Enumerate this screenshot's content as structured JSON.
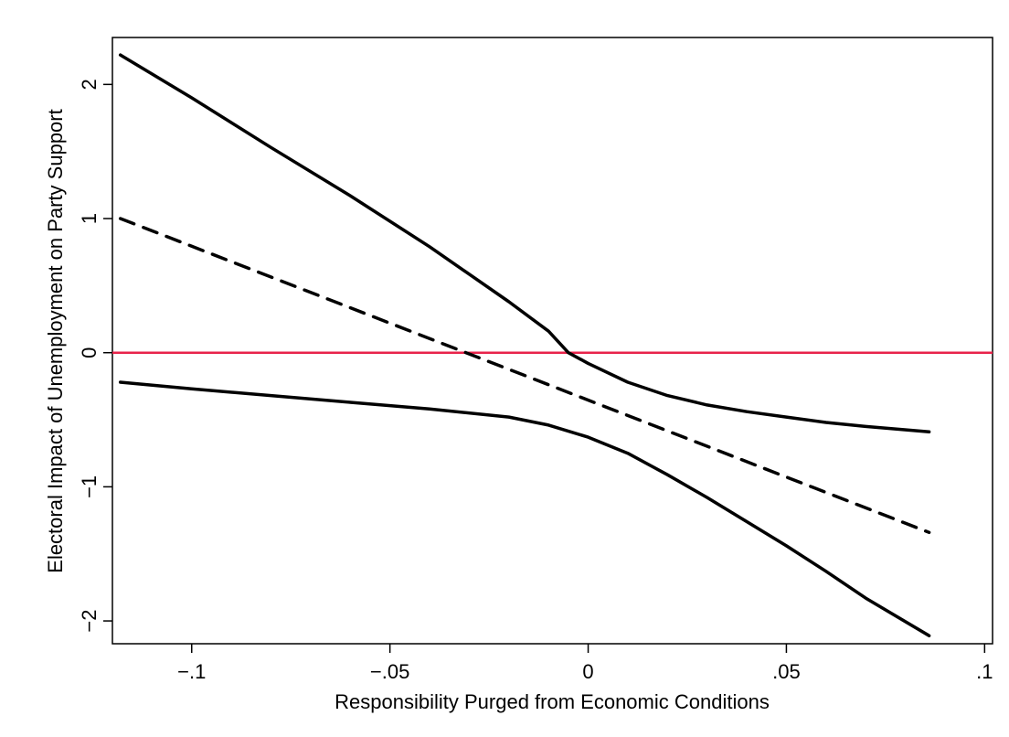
{
  "chart_data": {
    "type": "line",
    "title": "",
    "xlabel": "Responsibility Purged from Economic Conditions",
    "ylabel": "Electoral Impact of Unemployment on Party Support",
    "xlim": [
      -0.12,
      0.102
    ],
    "ylim": [
      -2.17,
      2.35
    ],
    "x_ticks": [
      -0.1,
      -0.05,
      0,
      0.05,
      0.1
    ],
    "x_tick_labels": [
      "−.1",
      "−.05",
      "0",
      ".05",
      ".1"
    ],
    "y_ticks": [
      -2,
      -1,
      0,
      1,
      2
    ],
    "y_tick_labels": [
      "−2",
      "−1",
      "0",
      "1",
      "2"
    ],
    "grid": false,
    "legend": "none",
    "reference_line": {
      "y": 0,
      "color": "#e8234a"
    },
    "series": [
      {
        "role": "upper-bound",
        "style": "solid",
        "color": "#000000",
        "points": [
          [
            -0.118,
            2.22
          ],
          [
            -0.1,
            1.9
          ],
          [
            -0.08,
            1.53
          ],
          [
            -0.06,
            1.17
          ],
          [
            -0.04,
            0.79
          ],
          [
            -0.02,
            0.38
          ],
          [
            -0.01,
            0.16
          ],
          [
            -0.005,
            0.0
          ],
          [
            0.0,
            -0.08
          ],
          [
            0.01,
            -0.22
          ],
          [
            0.02,
            -0.32
          ],
          [
            0.03,
            -0.39
          ],
          [
            0.04,
            -0.44
          ],
          [
            0.05,
            -0.48
          ],
          [
            0.06,
            -0.52
          ],
          [
            0.07,
            -0.55
          ],
          [
            0.086,
            -0.59
          ]
        ]
      },
      {
        "role": "point-estimate",
        "style": "dashed",
        "color": "#000000",
        "points": [
          [
            -0.118,
            1.0
          ],
          [
            0.086,
            -1.34
          ]
        ]
      },
      {
        "role": "lower-bound",
        "style": "solid",
        "color": "#000000",
        "points": [
          [
            -0.118,
            -0.22
          ],
          [
            -0.1,
            -0.27
          ],
          [
            -0.08,
            -0.32
          ],
          [
            -0.06,
            -0.37
          ],
          [
            -0.04,
            -0.42
          ],
          [
            -0.02,
            -0.48
          ],
          [
            -0.01,
            -0.54
          ],
          [
            0.0,
            -0.63
          ],
          [
            0.01,
            -0.75
          ],
          [
            0.02,
            -0.91
          ],
          [
            0.03,
            -1.08
          ],
          [
            0.04,
            -1.26
          ],
          [
            0.05,
            -1.44
          ],
          [
            0.06,
            -1.63
          ],
          [
            0.07,
            -1.83
          ],
          [
            0.086,
            -2.11
          ]
        ]
      }
    ]
  }
}
